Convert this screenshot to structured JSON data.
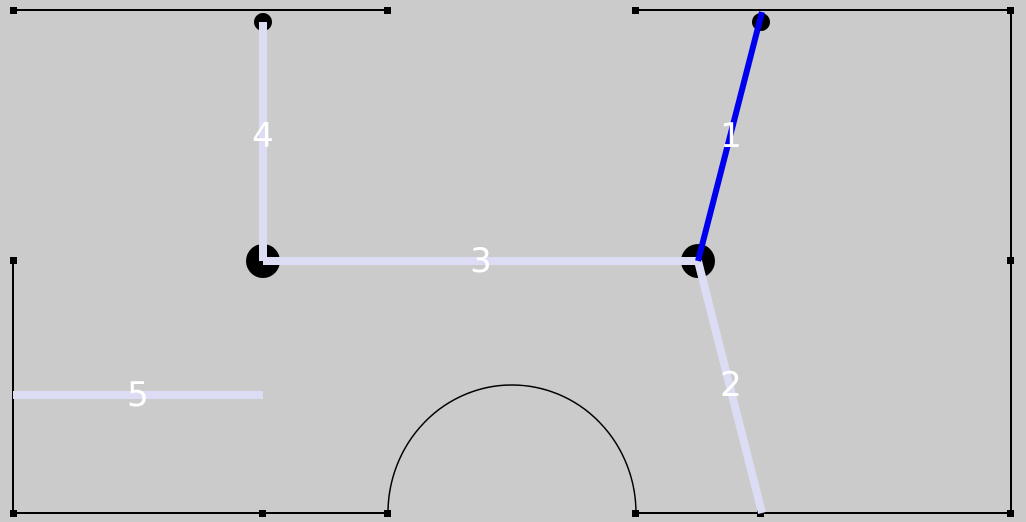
{
  "colors": {
    "background": "#cbcbcb",
    "outline": "#000000",
    "segment": "#dcdcf5",
    "segment_selected": "#0000ee",
    "joint": "#000000",
    "label": "#ffffff"
  },
  "segments": [
    {
      "id": "1",
      "label": "1",
      "selected": true
    },
    {
      "id": "2",
      "label": "2",
      "selected": false
    },
    {
      "id": "3",
      "label": "3",
      "selected": false
    },
    {
      "id": "4",
      "label": "4",
      "selected": false
    },
    {
      "id": "5",
      "label": "5",
      "selected": false
    }
  ]
}
